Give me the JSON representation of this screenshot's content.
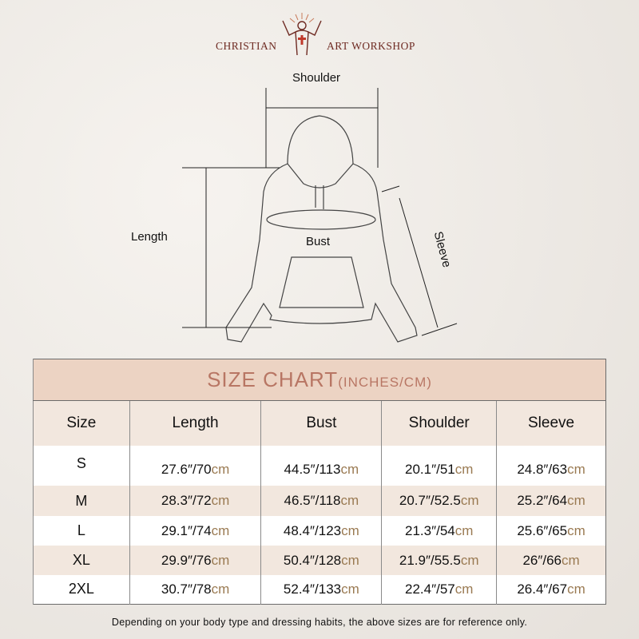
{
  "brand": {
    "left": "CHRISTIAN",
    "right": "ART WORKSHOP",
    "logo_icon": "jesus-cross-icon"
  },
  "diagram": {
    "shoulder": "Shoulder",
    "length": "Length",
    "bust": "Bust",
    "sleeve": "Sleeve"
  },
  "table": {
    "title": "SIZE CHART",
    "unit": "(INCHES/CM)",
    "columns": [
      "Size",
      "Length",
      "Bust",
      "Shoulder",
      "Sleeve"
    ],
    "rows": [
      {
        "size": "S",
        "cells": [
          [
            "27.6″/70",
            "cm"
          ],
          [
            "44.5″/113",
            "cm"
          ],
          [
            "20.1″/51",
            "cm"
          ],
          [
            "24.8″/63",
            "cm"
          ]
        ]
      },
      {
        "size": "M",
        "cells": [
          [
            "28.3″/72",
            "cm"
          ],
          [
            "46.5″/118",
            "cm"
          ],
          [
            "20.7″/52.5",
            "cm"
          ],
          [
            "25.2″/64",
            "cm"
          ]
        ]
      },
      {
        "size": "L",
        "cells": [
          [
            "29.1″/74",
            "cm"
          ],
          [
            "48.4″/123",
            "cm"
          ],
          [
            "21.3″/54",
            "cm"
          ],
          [
            "25.6″/65",
            "cm"
          ]
        ]
      },
      {
        "size": "XL",
        "cells": [
          [
            "29.9″/76",
            "cm"
          ],
          [
            "50.4″/128",
            "cm"
          ],
          [
            "21.9″/55.5",
            "cm"
          ],
          [
            "26″/66",
            "cm"
          ]
        ]
      },
      {
        "size": "2XL",
        "cells": [
          [
            "30.7″/78",
            "cm"
          ],
          [
            "52.4″/133",
            "cm"
          ],
          [
            "22.4″/57",
            "cm"
          ],
          [
            "26.4″/67",
            "cm"
          ]
        ]
      }
    ],
    "colors": {
      "header_bg": "#ecd3c3",
      "title": "#b87664",
      "alt_row": "#f2e7de",
      "cm": "#9a7a52"
    }
  },
  "note": "Depending on your body type and dressing habits, the above sizes are for reference only."
}
